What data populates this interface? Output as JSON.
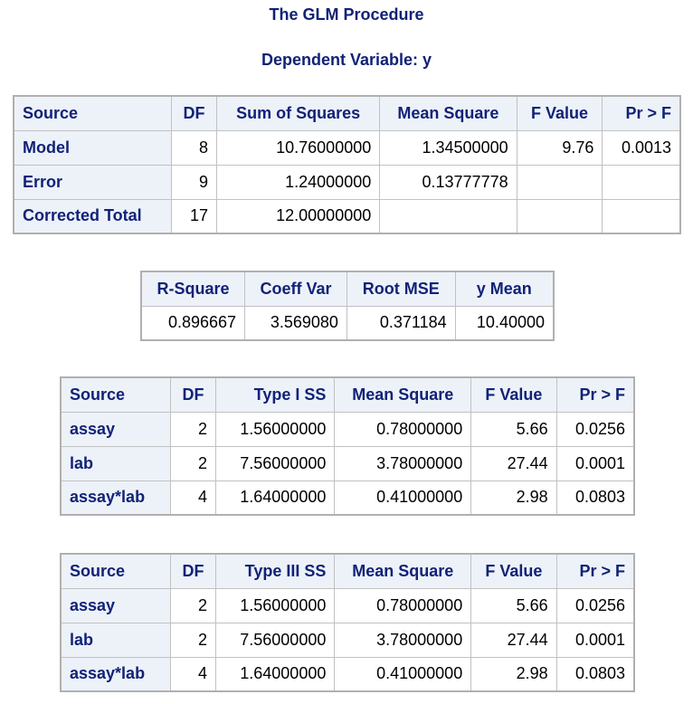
{
  "header": {
    "procedure_title": "The GLM Procedure",
    "dependent_variable": "Dependent Variable: y"
  },
  "anova": {
    "columns": [
      "Source",
      "DF",
      "Sum of Squares",
      "Mean Square",
      "F Value",
      "Pr > F"
    ],
    "rows": [
      [
        "Model",
        "8",
        "10.76000000",
        "1.34500000",
        "9.76",
        "0.0013"
      ],
      [
        "Error",
        "9",
        "1.24000000",
        "0.13777778",
        "",
        ""
      ],
      [
        "Corrected Total",
        "17",
        "12.00000000",
        "",
        "",
        ""
      ]
    ]
  },
  "fit": {
    "columns": [
      "R-Square",
      "Coeff Var",
      "Root MSE",
      "y Mean"
    ],
    "values": [
      "0.896667",
      "3.569080",
      "0.371184",
      "10.40000"
    ]
  },
  "type1": {
    "columns": [
      "Source",
      "DF",
      "Type I SS",
      "Mean Square",
      "F Value",
      "Pr > F"
    ],
    "rows": [
      [
        "assay",
        "2",
        "1.56000000",
        "0.78000000",
        "5.66",
        "0.0256"
      ],
      [
        "lab",
        "2",
        "7.56000000",
        "3.78000000",
        "27.44",
        "0.0001"
      ],
      [
        "assay*lab",
        "4",
        "1.64000000",
        "0.41000000",
        "2.98",
        "0.0803"
      ]
    ]
  },
  "type3": {
    "columns": [
      "Source",
      "DF",
      "Type III SS",
      "Mean Square",
      "F Value",
      "Pr > F"
    ],
    "rows": [
      [
        "assay",
        "2",
        "1.56000000",
        "0.78000000",
        "5.66",
        "0.0256"
      ],
      [
        "lab",
        "2",
        "7.56000000",
        "3.78000000",
        "27.44",
        "0.0001"
      ],
      [
        "assay*lab",
        "4",
        "1.64000000",
        "0.41000000",
        "2.98",
        "0.0803"
      ]
    ]
  }
}
